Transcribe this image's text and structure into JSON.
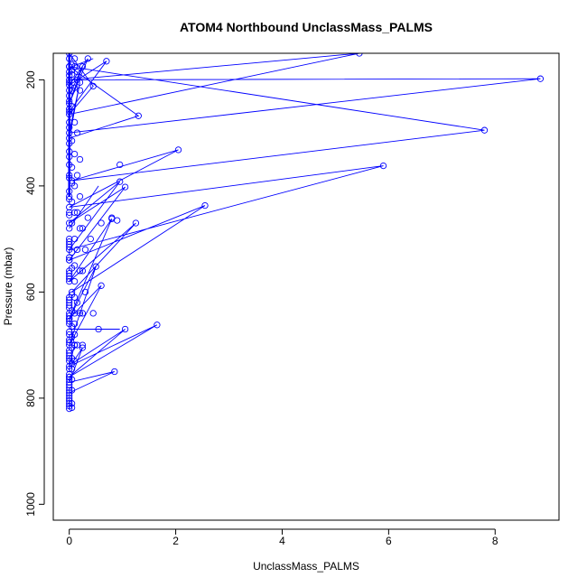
{
  "chart_data": {
    "type": "scatter",
    "title": "ATOM4 Northbound UnclassMass_PALMS",
    "xlabel": "UnclassMass_PALMS",
    "ylabel": "Pressure (mbar)",
    "xlim": [
      -0.3,
      9.2
    ],
    "ylim": [
      1030,
      150
    ],
    "y_reversed": true,
    "x_ticks": [
      0,
      2,
      4,
      6,
      8
    ],
    "x_tick_labels": [
      "0",
      "2",
      "4",
      "6",
      "8"
    ],
    "y_ticks": [
      200,
      400,
      600,
      800,
      1000
    ],
    "y_tick_labels": [
      "200",
      "400",
      "600",
      "800",
      "1000"
    ],
    "grid": false,
    "legend": "none",
    "colors": {
      "series": "#0000ff",
      "axes": "#000000"
    },
    "series": [
      {
        "mode": "lines+markers",
        "x": [
          0.0,
          0.25,
          0.0,
          0.35,
          0.0,
          0.7,
          0.0,
          0.0,
          0.45,
          0.0,
          5.45,
          0.0,
          8.85,
          0.0,
          0.2,
          0.0,
          1.3,
          0.0,
          7.8,
          0.05,
          2.05,
          0.0,
          5.9,
          0.0,
          0.95,
          0.0,
          1.05,
          0.0,
          2.55,
          0.05,
          1.25,
          0.0,
          0.8,
          0.0,
          0.5,
          0.0,
          0.6,
          0.0,
          0.1,
          0.0,
          1.65,
          0.0,
          1.05,
          0.05,
          0.25,
          0.0,
          0.85,
          0.0,
          0.0
        ],
        "y": [
          230,
          175,
          245,
          160,
          210,
          165,
          260,
          150,
          212,
          265,
          150,
          200,
          198,
          300,
          205,
          310,
          268,
          175,
          295,
          390,
          332,
          440,
          362,
          520,
          392,
          470,
          402,
          540,
          437,
          600,
          470,
          580,
          462,
          650,
          552,
          700,
          588,
          650,
          700,
          740,
          662,
          760,
          670,
          735,
          705,
          770,
          750,
          790,
          820
        ]
      },
      {
        "mode": "markers",
        "x": [
          0,
          0,
          0,
          0,
          0,
          0,
          0,
          0,
          0,
          0,
          0,
          0,
          0,
          0,
          0,
          0,
          0,
          0,
          0,
          0,
          0,
          0,
          0,
          0,
          0,
          0,
          0,
          0,
          0,
          0,
          0,
          0,
          0,
          0,
          0,
          0,
          0,
          0,
          0,
          0,
          0,
          0,
          0,
          0,
          0,
          0,
          0,
          0,
          0,
          0,
          0,
          0,
          0,
          0,
          0,
          0,
          0,
          0,
          0,
          0,
          0.05,
          0.05,
          0.05,
          0.05,
          0.05,
          0.05,
          0.05,
          0.05,
          0.05,
          0.05,
          0.05,
          0.05,
          0.05,
          0.05,
          0.05,
          0.05,
          0.05,
          0.05,
          0.05,
          0.05,
          0.1,
          0.1,
          0.1,
          0.1,
          0.1,
          0.1,
          0.1,
          0.1,
          0.1,
          0.1,
          0.1,
          0.1,
          0.1,
          0.1,
          0.15,
          0.15,
          0.15,
          0.15,
          0.15,
          0.15,
          0.2,
          0.2,
          0.2,
          0.2,
          0.2,
          0.25,
          0.25,
          0.25,
          0.25,
          0.3,
          0.3,
          0.35,
          0.4,
          0.45,
          0.55,
          0.6,
          0.8,
          0.9,
          0.95,
          0.1,
          0.1,
          0.15,
          0.15,
          0.2,
          0.05,
          0.05,
          0.0,
          0.0,
          0.05
        ],
        "y": [
          160,
          175,
          185,
          220,
          240,
          255,
          280,
          290,
          320,
          345,
          360,
          380,
          410,
          420,
          450,
          480,
          500,
          510,
          540,
          560,
          570,
          610,
          620,
          630,
          640,
          660,
          680,
          690,
          710,
          720,
          730,
          760,
          780,
          800,
          810,
          815,
          805,
          795,
          785,
          775,
          765,
          755,
          745,
          725,
          715,
          695,
          675,
          655,
          645,
          625,
          615,
          575,
          565,
          535,
          515,
          505,
          455,
          425,
          385,
          335,
          190,
          250,
          315,
          365,
          395,
          430,
          470,
          525,
          555,
          605,
          635,
          665,
          685,
          705,
          725,
          745,
          765,
          785,
          810,
          818,
          215,
          280,
          340,
          400,
          450,
          500,
          550,
          580,
          610,
          640,
          660,
          680,
          700,
          730,
          300,
          380,
          450,
          520,
          620,
          700,
          350,
          420,
          480,
          560,
          640,
          480,
          560,
          640,
          700,
          520,
          600,
          460,
          500,
          640,
          670,
          470,
          460,
          465,
          360,
          160,
          175,
          185,
          200,
          220,
          172,
          182,
          192,
          205,
          220
        ]
      }
    ],
    "extra_segments": [
      {
        "x0": 0.0,
        "y0": 670,
        "x1": 0.95,
        "y1": 670
      },
      {
        "x0": 0.0,
        "y0": 640,
        "x1": 0.25,
        "y1": 640
      },
      {
        "x0": 0.05,
        "y0": 175,
        "x1": 0.45,
        "y1": 160
      },
      {
        "x0": 0.0,
        "y0": 480,
        "x1": 0.55,
        "y1": 400
      }
    ]
  }
}
